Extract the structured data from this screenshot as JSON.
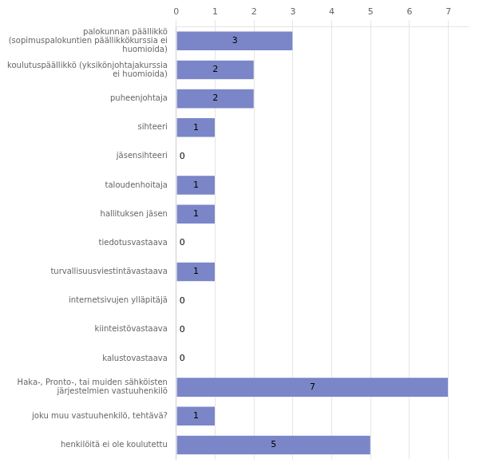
{
  "chart_data": {
    "type": "bar",
    "orientation": "horizontal",
    "categories": [
      "palokunnan päällikkö\n(sopimuspalokuntien päällikkökurssia ei\nhuomioida)",
      "koulutuspäällikkö (yksikönjohtajakurssia\nei huomioida)",
      "puheenjohtaja",
      "sihteeri",
      "jäsensihteeri",
      "taloudenhoitaja",
      "hallituksen jäsen",
      "tiedotusvastaava",
      "turvallisuusviestintävastaava",
      "internetsivujen ylläpitäjä",
      "kiinteistövastaava",
      "kalustovastaava",
      "Haka-, Pronto-, tai muiden sähköisten\njärjestelmien vastuuhenkilö",
      "joku muu vastuuhenkilö, tehtävä?",
      "henkilöitä ei ole koulutettu"
    ],
    "values": [
      3,
      2,
      2,
      1,
      0,
      1,
      1,
      0,
      1,
      0,
      0,
      0,
      7,
      1,
      5
    ],
    "color": "#7b86c8",
    "xlim": [
      0,
      7.5
    ],
    "xticks": [
      0,
      1,
      2,
      3,
      4,
      5,
      6,
      7
    ],
    "grid": true,
    "data_labels": true
  }
}
